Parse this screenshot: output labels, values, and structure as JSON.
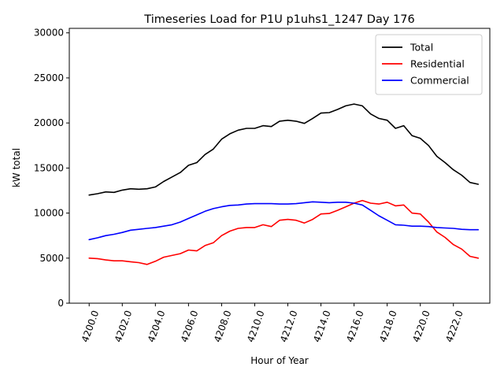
{
  "chart_data": {
    "type": "line",
    "title": "Timeseries Load for P1U p1uhs1_1247  Day 176",
    "xlabel": "Hour of Year",
    "ylabel": "kW total",
    "xlim": [
      4198.8,
      4224.2
    ],
    "ylim": [
      0,
      30500
    ],
    "xticks": [
      4200,
      4202,
      4204,
      4206,
      4208,
      4210,
      4212,
      4214,
      4216,
      4218,
      4220,
      4222
    ],
    "xtick_labels": [
      "4200.0",
      "4202.0",
      "4204.0",
      "4206.0",
      "4208.0",
      "4210.0",
      "4212.0",
      "4214.0",
      "4216.0",
      "4218.0",
      "4220.0",
      "4222.0"
    ],
    "yticks": [
      0,
      5000,
      10000,
      15000,
      20000,
      25000,
      30000
    ],
    "ytick_labels": [
      "0",
      "5000",
      "10000",
      "15000",
      "20000",
      "25000",
      "30000"
    ],
    "legend_position": "top-right",
    "x": [
      4200,
      4200.5,
      4201,
      4201.5,
      4202,
      4202.5,
      4203,
      4203.5,
      4204,
      4204.5,
      4205,
      4205.5,
      4206,
      4206.5,
      4207,
      4207.5,
      4208,
      4208.5,
      4209,
      4209.5,
      4210,
      4210.5,
      4211,
      4211.5,
      4212,
      4212.5,
      4213,
      4213.5,
      4214,
      4214.5,
      4215,
      4215.5,
      4216,
      4216.5,
      4217,
      4217.5,
      4218,
      4218.5,
      4219,
      4219.5,
      4220,
      4220.5,
      4221,
      4221.5,
      4222,
      4222.5,
      4223,
      4223.5
    ],
    "series": [
      {
        "name": "Total",
        "color": "#000000",
        "values": [
          12000,
          12150,
          12350,
          12300,
          12550,
          12700,
          12650,
          12700,
          12900,
          13500,
          14000,
          14500,
          15300,
          15600,
          16500,
          17100,
          18200,
          18800,
          19200,
          19400,
          19400,
          19700,
          19600,
          20200,
          20300,
          20200,
          19950,
          20500,
          21100,
          21150,
          21500,
          21900,
          22100,
          21900,
          21000,
          20500,
          20300,
          19400,
          19700,
          18600,
          18300,
          17500,
          16300,
          15600,
          14800,
          14200,
          13400,
          13200
        ]
      },
      {
        "name": "Residential",
        "color": "#ff0000",
        "values": [
          5000,
          4950,
          4800,
          4700,
          4700,
          4600,
          4500,
          4300,
          4650,
          5100,
          5300,
          5500,
          5900,
          5800,
          6400,
          6700,
          7500,
          8000,
          8300,
          8400,
          8400,
          8700,
          8500,
          9200,
          9300,
          9200,
          8900,
          9300,
          9900,
          9950,
          10300,
          10700,
          11100,
          11400,
          11100,
          11000,
          11200,
          10800,
          10900,
          10000,
          9900,
          9000,
          7900,
          7300,
          6500,
          6000,
          5200,
          5000
        ]
      },
      {
        "name": "Commercial",
        "color": "#0000ff",
        "values": [
          7050,
          7250,
          7500,
          7650,
          7850,
          8100,
          8200,
          8300,
          8400,
          8550,
          8700,
          9000,
          9400,
          9800,
          10200,
          10500,
          10700,
          10850,
          10900,
          11000,
          11050,
          11050,
          11050,
          11000,
          11000,
          11050,
          11150,
          11250,
          11200,
          11150,
          11200,
          11200,
          11100,
          10900,
          10300,
          9700,
          9200,
          8700,
          8650,
          8550,
          8550,
          8500,
          8400,
          8350,
          8300,
          8200,
          8150,
          8150
        ]
      }
    ]
  }
}
